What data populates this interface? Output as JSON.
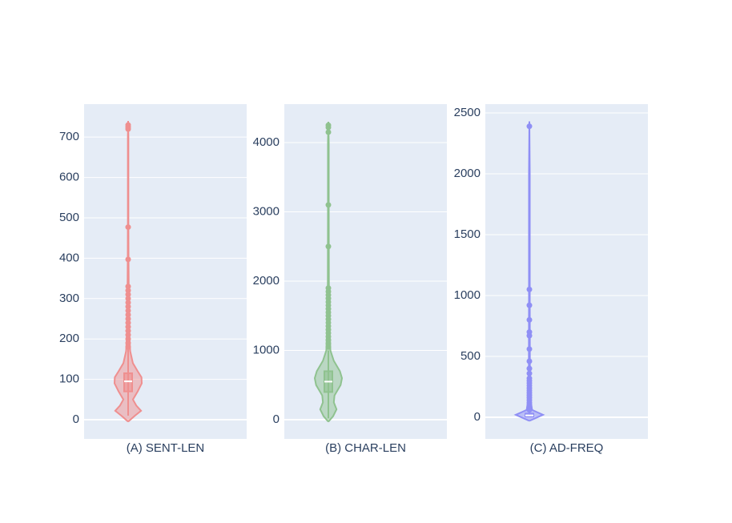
{
  "chart_data": [
    {
      "type": "violin",
      "category": "(A) SENT-LEN",
      "color": "#ef8f8f",
      "ylim": [
        -47.6,
        781.7
      ],
      "yticks": [
        0,
        100,
        200,
        300,
        400,
        500,
        600,
        700
      ],
      "grid": true,
      "kde": {
        "y": [
          -5,
          10,
          22,
          35,
          50,
          70,
          90,
          105,
          120,
          140,
          170,
          220,
          300,
          400,
          500,
          600,
          700,
          740
        ],
        "density": [
          0,
          0.5,
          0.95,
          0.6,
          0.35,
          0.7,
          1,
          0.98,
          0.7,
          0.35,
          0.15,
          0.08,
          0.05,
          0.03,
          0.02,
          0.02,
          0.02,
          0
        ]
      },
      "box": {
        "q1": 70,
        "median": 95,
        "q3": 115
      },
      "whiskers": [
        10,
        180
      ],
      "points": [
        730,
        725,
        720,
        477,
        397,
        330,
        320,
        310,
        300,
        290,
        280,
        270,
        260,
        250,
        240,
        230,
        220,
        210,
        200,
        190,
        180
      ]
    },
    {
      "type": "violin",
      "category": "(B) CHAR-LEN",
      "color": "#8fc28f",
      "ylim": [
        -277,
        4555
      ],
      "yticks": [
        0,
        1000,
        2000,
        3000,
        4000
      ],
      "grid": true,
      "kde": {
        "y": [
          -30,
          50,
          150,
          250,
          350,
          500,
          600,
          700,
          850,
          1000,
          1500,
          2000,
          3000,
          4000,
          4300
        ],
        "density": [
          0,
          0.35,
          0.6,
          0.4,
          0.45,
          0.9,
          1,
          0.85,
          0.4,
          0.15,
          0.07,
          0.04,
          0.03,
          0.03,
          0
        ]
      },
      "box": {
        "q1": 400,
        "median": 550,
        "q3": 700
      },
      "whiskers": [
        20,
        1000
      ],
      "points": [
        4250,
        4220,
        4150,
        3100,
        2500,
        1900,
        1850,
        1800,
        1750,
        1700,
        1650,
        1600,
        1550,
        1500,
        1450,
        1400,
        1350,
        1300,
        1250,
        1200,
        1150,
        1100,
        1050
      ]
    },
    {
      "type": "violin",
      "category": "(C) AD-FREQ",
      "color": "#8f8ff5",
      "ylim": [
        -178,
        2572
      ],
      "yticks": [
        0,
        500,
        1000,
        1500,
        2000,
        2500
      ],
      "grid": true,
      "kde": {
        "y": [
          -30,
          0,
          20,
          40,
          60,
          150,
          400,
          1000,
          2000,
          2430
        ],
        "density": [
          0,
          0.6,
          1,
          0.6,
          0.2,
          0.08,
          0.04,
          0.03,
          0.03,
          0
        ]
      },
      "box": {
        "q1": 5,
        "median": 15,
        "q3": 30
      },
      "whiskers": [
        0,
        60
      ],
      "points": [
        2390,
        1050,
        920,
        800,
        700,
        670,
        560,
        460,
        400,
        360,
        320,
        300,
        280,
        260,
        240,
        220,
        200,
        180,
        160,
        140,
        120,
        100,
        80,
        60
      ]
    }
  ]
}
